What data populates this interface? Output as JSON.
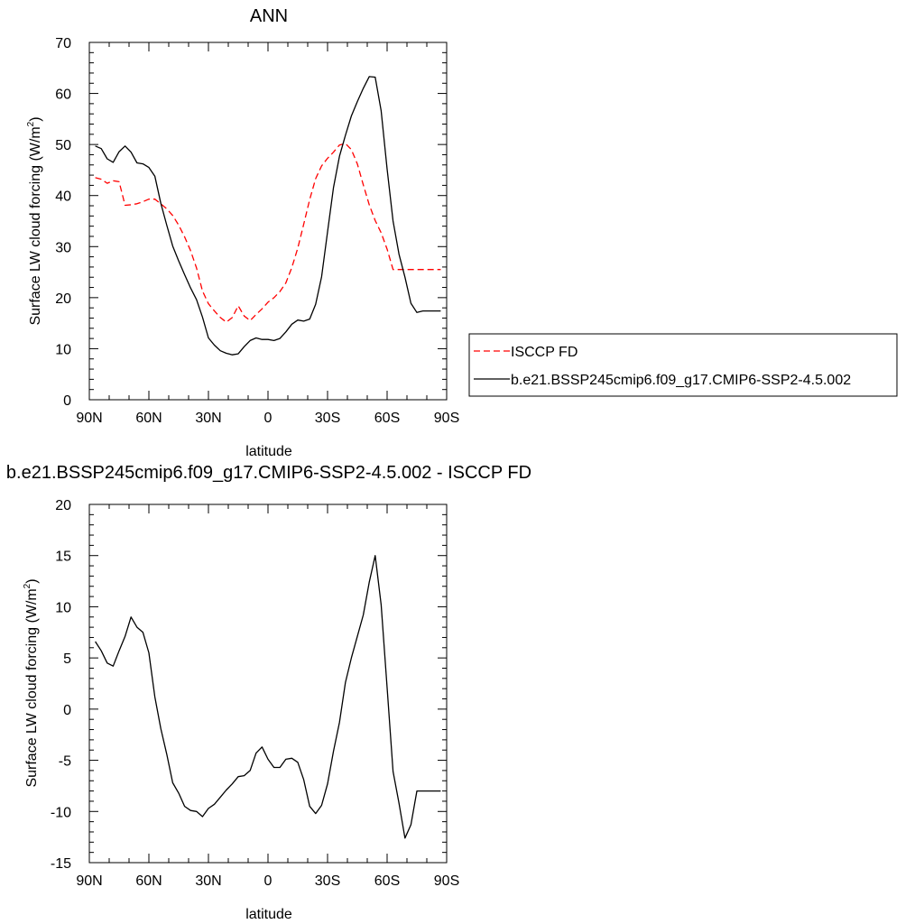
{
  "chart_data": [
    {
      "type": "line",
      "title": "ANN",
      "xlabel": "latitude",
      "ylabel": "Surface LW cloud forcing (W/m",
      "ylabel_sup": "2",
      "ylabel_close": ")",
      "xlim": [
        90,
        -90
      ],
      "ylim": [
        0,
        70
      ],
      "xticks": [
        90,
        60,
        30,
        0,
        -30,
        -60,
        -90
      ],
      "xticklabels": [
        "90N",
        "60N",
        "30N",
        "0",
        "30S",
        "60S",
        "90S"
      ],
      "yticks": [
        0,
        10,
        20,
        30,
        40,
        50,
        60,
        70
      ],
      "yticklabels": [
        "0",
        "10",
        "20",
        "30",
        "40",
        "50",
        "60",
        "70"
      ],
      "legend": "right",
      "series": [
        {
          "name": "ISCCP FD",
          "color": "#ff0000",
          "dash": "dashed",
          "x": [
            87,
            84,
            81,
            78,
            75,
            72,
            69,
            66,
            63,
            60,
            57,
            54,
            51,
            48,
            45,
            42,
            39,
            36,
            33,
            30,
            27,
            24,
            21,
            18,
            15,
            12,
            9,
            6,
            3,
            0,
            -3,
            -6,
            -9,
            -12,
            -15,
            -18,
            -21,
            -24,
            -27,
            -30,
            -33,
            -36,
            -39,
            -42,
            -45,
            -48,
            -51,
            -54,
            -57,
            -60,
            -63,
            -66,
            -69,
            -72,
            -75,
            -78,
            -81,
            -84,
            -87
          ],
          "y": [
            43.5,
            43.2,
            42.4,
            42.9,
            42.7,
            38.1,
            38.2,
            38.4,
            38.8,
            39.3,
            39.3,
            38.4,
            37.4,
            36.1,
            34.2,
            31.9,
            29.2,
            25.8,
            21.3,
            18.8,
            17.4,
            16.1,
            15.2,
            16.1,
            18.4,
            16.4,
            15.5,
            16.7,
            17.8,
            19.1,
            20.0,
            21.2,
            22.9,
            25.9,
            29.7,
            34.4,
            39.2,
            43.3,
            45.8,
            47.3,
            48.5,
            49.9,
            50.2,
            49.0,
            46.2,
            42.1,
            38.2,
            35.1,
            32.7,
            29.5,
            25.5,
            25.5,
            25.5,
            25.5,
            25.5,
            25.5,
            25.5,
            25.5,
            25.5
          ]
        },
        {
          "name": "b.e21.BSSP245cmip6.f09_g17.CMIP6-SSP2-4.5.002",
          "color": "#000000",
          "dash": "solid",
          "x": [
            87,
            84,
            81,
            78,
            75,
            72,
            69,
            66,
            63,
            60,
            57,
            54,
            51,
            48,
            45,
            42,
            39,
            36,
            33,
            30,
            27,
            24,
            21,
            18,
            15,
            12,
            9,
            6,
            3,
            0,
            -3,
            -6,
            -9,
            -12,
            -15,
            -18,
            -21,
            -24,
            -27,
            -30,
            -33,
            -36,
            -39,
            -42,
            -45,
            -48,
            -51,
            -54,
            -57,
            -60,
            -63,
            -66,
            -69,
            -72,
            -75,
            -78,
            -81,
            -84,
            -87
          ],
          "y": [
            49.7,
            49.2,
            47.2,
            46.5,
            48.6,
            49.7,
            48.5,
            46.4,
            46.2,
            45.5,
            43.8,
            38.5,
            34.2,
            30.1,
            27.2,
            24.5,
            21.9,
            19.6,
            16.2,
            12.1,
            10.7,
            9.6,
            9.1,
            8.8,
            9.0,
            10.4,
            11.6,
            12.1,
            11.8,
            11.8,
            11.6,
            12.0,
            13.3,
            14.8,
            15.6,
            15.4,
            15.8,
            18.7,
            24.1,
            32.9,
            41.6,
            47.7,
            51.8,
            55.6,
            58.4,
            61.0,
            63.3,
            63.2,
            56.6,
            45.2,
            35.0,
            28.5,
            24.0,
            18.9,
            17.1,
            17.4,
            17.4,
            17.4,
            17.4
          ]
        }
      ]
    },
    {
      "type": "line",
      "title": "b.e21.BSSP245cmip6.f09_g17.CMIP6-SSP2-4.5.002 - ISCCP FD",
      "xlabel": "latitude",
      "ylabel": "Surface LW cloud forcing (W/m",
      "ylabel_sup": "2",
      "ylabel_close": ")",
      "xlim": [
        90,
        -90
      ],
      "ylim": [
        -15,
        20
      ],
      "xticks": [
        90,
        60,
        30,
        0,
        -30,
        -60,
        -90
      ],
      "xticklabels": [
        "90N",
        "60N",
        "30N",
        "0",
        "30S",
        "60S",
        "90S"
      ],
      "yticks": [
        -15,
        -10,
        -5,
        0,
        5,
        10,
        15,
        20
      ],
      "yticklabels": [
        "-15",
        "-10",
        "-5",
        "0",
        "5",
        "10",
        "15",
        "20"
      ],
      "series": [
        {
          "color": "#000000",
          "dash": "solid",
          "x": [
            87,
            84,
            81,
            78,
            75,
            72,
            69,
            66,
            63,
            60,
            57,
            54,
            51,
            48,
            45,
            42,
            39,
            36,
            33,
            30,
            27,
            24,
            21,
            18,
            15,
            12,
            9,
            6,
            3,
            0,
            -3,
            -6,
            -9,
            -12,
            -15,
            -18,
            -21,
            -24,
            -27,
            -30,
            -33,
            -36,
            -39,
            -42,
            -45,
            -48,
            -51,
            -54,
            -57,
            -60,
            -63,
            -66,
            -69,
            -72,
            -75,
            -78,
            -81,
            -84,
            -87
          ],
          "y": [
            6.6,
            5.7,
            4.5,
            4.2,
            5.7,
            7.1,
            9.0,
            8.0,
            7.5,
            5.5,
            1.2,
            -1.9,
            -4.4,
            -7.2,
            -8.2,
            -9.5,
            -9.9,
            -10.0,
            -10.5,
            -9.7,
            -9.3,
            -8.6,
            -7.9,
            -7.3,
            -6.6,
            -6.5,
            -6.0,
            -4.3,
            -3.7,
            -4.9,
            -5.7,
            -5.7,
            -4.9,
            -4.8,
            -5.2,
            -6.9,
            -9.5,
            -10.2,
            -9.4,
            -7.3,
            -4.1,
            -1.3,
            2.6,
            5.0,
            7.1,
            9.2,
            12.4,
            15.0,
            10.2,
            2.1,
            -6.1,
            -9.2,
            -12.6,
            -11.3,
            -8.0,
            -8.0,
            -8.0,
            -8.0,
            -8.0
          ]
        }
      ]
    }
  ]
}
